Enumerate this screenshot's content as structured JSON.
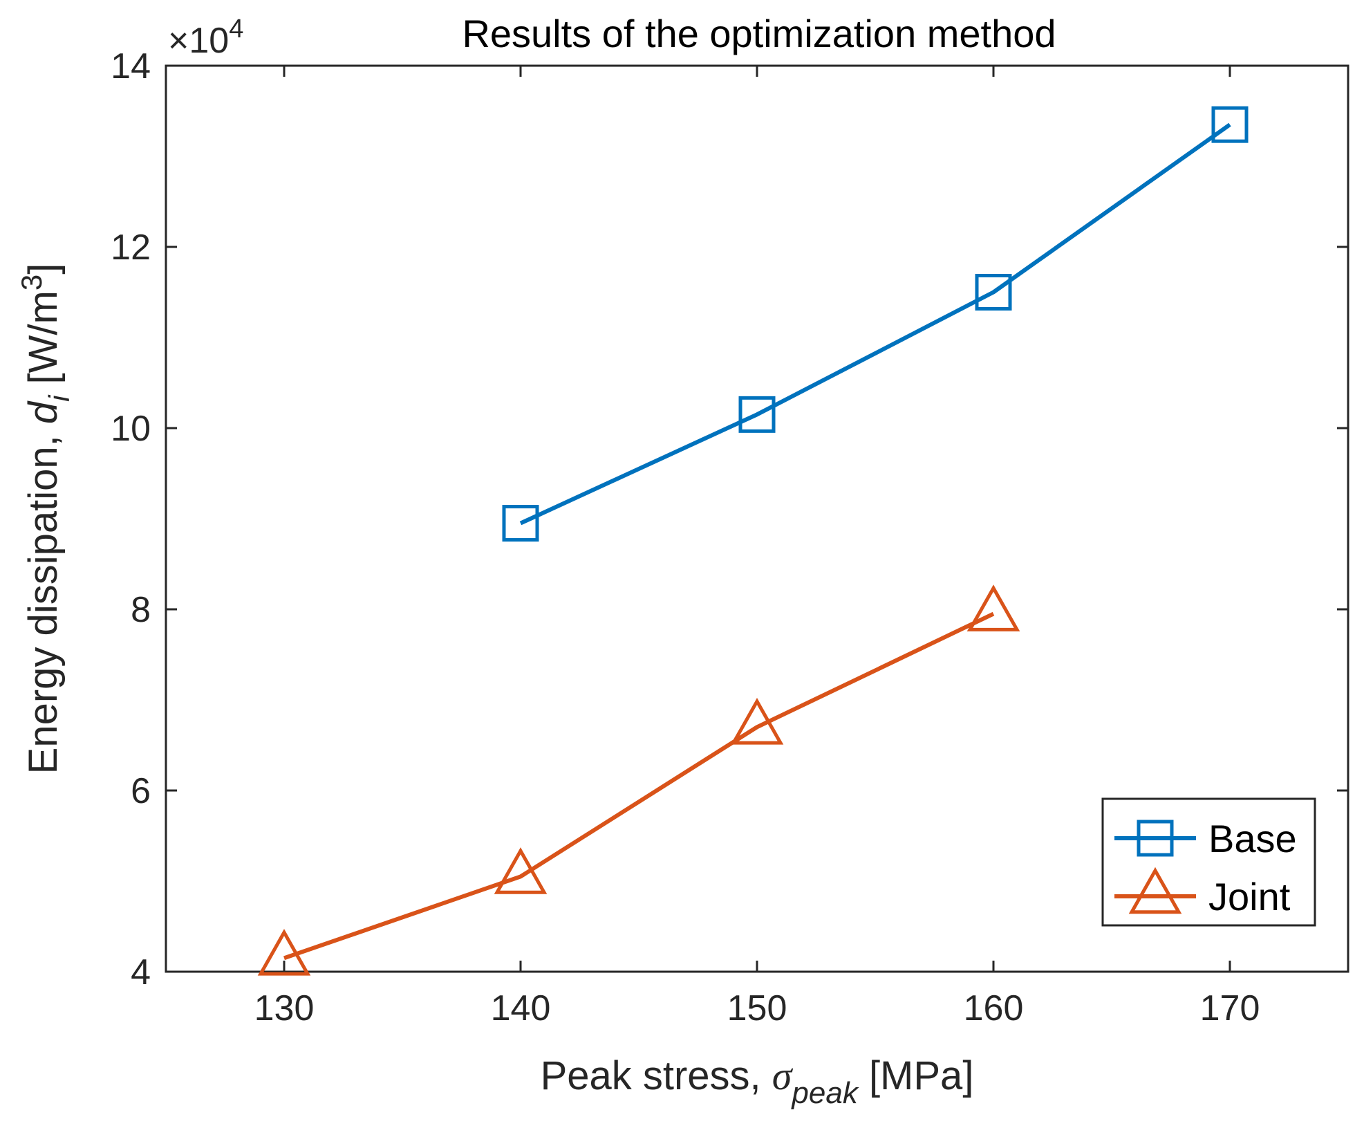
{
  "chart_data": {
    "type": "line",
    "title": "Results of the optimization method",
    "xlabel": {
      "prefix": "Peak stress, ",
      "symbol": "σ",
      "subscript": "peak",
      "unit": " [MPa]"
    },
    "ylabel": {
      "prefix": "Energy dissipation, ",
      "symbol": "d",
      "subscript": "i",
      "unit_open": " [W/m",
      "unit_sup": "3",
      "unit_close": "]"
    },
    "exponent": {
      "base": "×10",
      "power": "4"
    },
    "xlim": [
      125,
      175
    ],
    "ylim": [
      4,
      14
    ],
    "x_ticks": [
      130,
      140,
      150,
      160,
      170
    ],
    "x_tick_labels": [
      "130",
      "140",
      "150",
      "160",
      "170"
    ],
    "y_ticks": [
      4,
      6,
      8,
      10,
      12,
      14
    ],
    "y_tick_labels": [
      "4",
      "6",
      "8",
      "10",
      "12",
      "14"
    ],
    "grid": false,
    "legend_position": "bottom-right",
    "series": [
      {
        "name": "Base",
        "color": "#0072BD",
        "marker": "square",
        "x": [
          140,
          150,
          160,
          170
        ],
        "values": [
          8.95,
          10.15,
          11.5,
          13.35
        ]
      },
      {
        "name": "Joint",
        "color": "#D95319",
        "marker": "triangle",
        "x": [
          130,
          140,
          150,
          160
        ],
        "values": [
          4.15,
          5.05,
          6.7,
          7.95
        ]
      }
    ]
  }
}
